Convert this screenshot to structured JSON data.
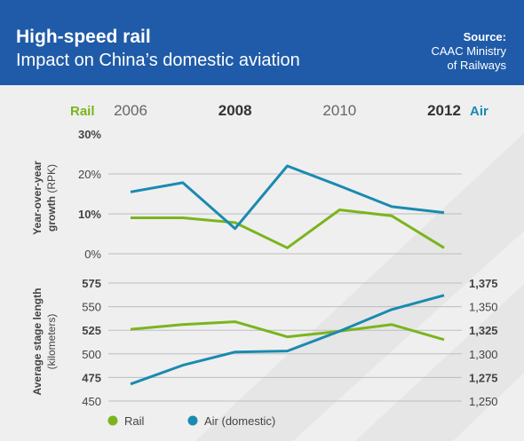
{
  "header": {
    "title": "High-speed rail",
    "subtitle": "Impact on China’s domestic aviation",
    "source_label": "Source:",
    "source_lines": [
      "CAAC Ministry",
      "of Railways"
    ]
  },
  "colors": {
    "header_bg": "#1f5ba8",
    "rail": "#7ab51d",
    "air": "#1a8ab0",
    "background": "#efefef"
  },
  "chart_data": [
    {
      "type": "line",
      "ylabel_main": "Year-over-year",
      "ylabel_line2": "growth",
      "ylabel_unit": "(RPK)",
      "x": [
        "2006",
        "2007",
        "2008",
        "2009",
        "2010",
        "2011",
        "2012"
      ],
      "x_tick_labels": [
        {
          "label": "2006",
          "x": "2006",
          "bold": false
        },
        {
          "label": "2008",
          "x": "2008",
          "bold": true
        },
        {
          "label": "2010",
          "x": "2010",
          "bold": false
        },
        {
          "label": "2012",
          "x": "2012",
          "bold": true
        }
      ],
      "rail_tag": "Rail",
      "air_tag": "Air",
      "ylim": [
        0,
        30
      ],
      "yticks": [
        {
          "label": "30%",
          "value": 30,
          "bold": true
        },
        {
          "label": "20%",
          "value": 20,
          "bold": false
        },
        {
          "label": "10%",
          "value": 10,
          "bold": true
        },
        {
          "label": "0%",
          "value": 0,
          "bold": false
        }
      ],
      "series": [
        {
          "name": "Rail",
          "values": [
            9,
            9,
            7.8,
            1.5,
            11,
            9.5,
            1.5
          ]
        },
        {
          "name": "Air",
          "values": [
            15.5,
            17.8,
            6.3,
            22,
            17,
            11.8,
            10.3
          ]
        }
      ]
    },
    {
      "type": "line",
      "ylabel_main": "Average stage length",
      "ylabel_unit": "(kilometers)",
      "x": [
        "2006",
        "2007",
        "2008",
        "2009",
        "2010",
        "2011",
        "2012"
      ],
      "ylim_left": [
        450,
        575
      ],
      "ylim_right": [
        1250,
        1375
      ],
      "yticks_left": [
        {
          "label": "575",
          "value": 575,
          "bold": true
        },
        {
          "label": "550",
          "value": 550,
          "bold": false
        },
        {
          "label": "525",
          "value": 525,
          "bold": true
        },
        {
          "label": "500",
          "value": 500,
          "bold": false
        },
        {
          "label": "475",
          "value": 475,
          "bold": true
        },
        {
          "label": "450",
          "value": 450,
          "bold": false
        }
      ],
      "yticks_right": [
        {
          "label": "1,375",
          "value": 1375,
          "bold": true
        },
        {
          "label": "1,350",
          "value": 1350,
          "bold": false
        },
        {
          "label": "1,325",
          "value": 1325,
          "bold": true
        },
        {
          "label": "1,300",
          "value": 1300,
          "bold": false
        },
        {
          "label": "1,275",
          "value": 1275,
          "bold": true
        },
        {
          "label": "1,250",
          "value": 1250,
          "bold": false
        }
      ],
      "series": [
        {
          "name": "Rail",
          "axis": "left",
          "values": [
            526,
            531,
            534,
            518,
            524,
            531,
            515
          ]
        },
        {
          "name": "Air (domestic)",
          "axis": "right",
          "values": [
            1268,
            1288,
            1302,
            1303,
            1324,
            1347,
            1362
          ]
        }
      ],
      "legend": [
        {
          "label": "Rail",
          "series": "Rail"
        },
        {
          "label": "Air (domestic)",
          "series": "Air (domestic)"
        }
      ],
      "legend_position": "bottom-left"
    }
  ]
}
